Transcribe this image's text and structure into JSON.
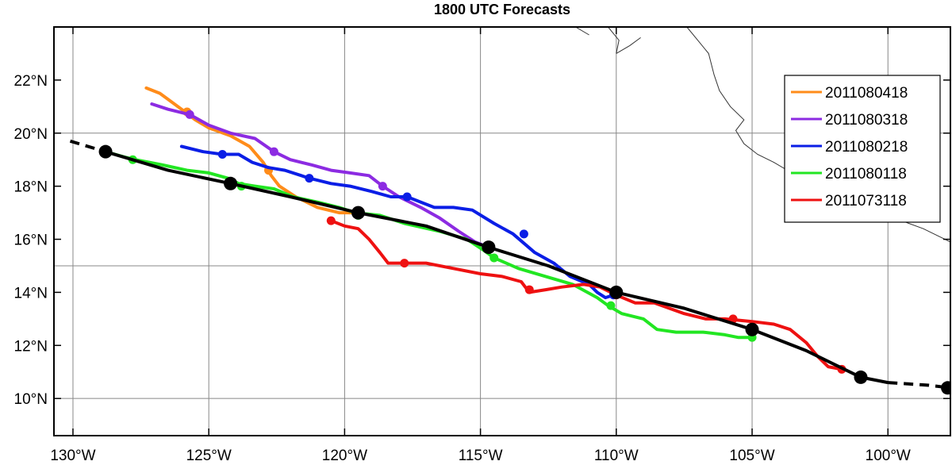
{
  "title": "1800 UTC Forecasts",
  "colors": {
    "best_track": "#000000",
    "grid": "#888888",
    "coast": "#333333"
  },
  "chart_data": {
    "type": "map-tracks",
    "xlim": [
      -130.7,
      -97.7
    ],
    "ylim": [
      8.6,
      24.0
    ],
    "x_ticks": [
      -130,
      -125,
      -120,
      -115,
      -110,
      -105,
      -100
    ],
    "x_tick_labels": [
      "130°W",
      "125°W",
      "120°W",
      "115°W",
      "110°W",
      "105°W",
      "100°W"
    ],
    "y_ticks": [
      10,
      12,
      14,
      16,
      18,
      20,
      22
    ],
    "y_tick_labels": [
      "10°N",
      "12°N",
      "14°N",
      "16°N",
      "18°N",
      "20°N",
      "22°N"
    ],
    "grid_lon": [
      -130,
      -125,
      -120,
      -115,
      -110,
      -105,
      -100
    ],
    "grid_lat": [
      10,
      15,
      20
    ],
    "legend_position": "top-right",
    "best_track": {
      "color": "#000000",
      "dashed_start": [
        [
          -130.1,
          19.7
        ],
        [
          -128.8,
          19.3
        ]
      ],
      "solid": [
        [
          -128.8,
          19.3
        ],
        [
          -126.5,
          18.6
        ],
        [
          -124.2,
          18.1
        ],
        [
          -122,
          17.6
        ],
        [
          -119.5,
          17.0
        ],
        [
          -117,
          16.5
        ],
        [
          -114.7,
          15.7
        ],
        [
          -112.5,
          15.0
        ],
        [
          -110,
          14.0
        ],
        [
          -107.5,
          13.4
        ],
        [
          -105,
          12.6
        ],
        [
          -103,
          11.8
        ],
        [
          -101,
          10.8
        ],
        [
          -100,
          10.6
        ]
      ],
      "dashed_end": [
        [
          -100,
          10.6
        ],
        [
          -98.5,
          10.5
        ],
        [
          -97.7,
          10.4
        ]
      ],
      "markers": [
        [
          -128.8,
          19.3
        ],
        [
          -124.2,
          18.1
        ],
        [
          -119.5,
          17.0
        ],
        [
          -114.7,
          15.7
        ],
        [
          -110,
          14.0
        ],
        [
          -105,
          12.6
        ],
        [
          -101,
          10.8
        ],
        [
          -97.8,
          10.4
        ]
      ]
    },
    "series": [
      {
        "name": "2011080418",
        "color": "#ff8c1a",
        "track": [
          [
            -127.3,
            21.7
          ],
          [
            -126.8,
            21.5
          ],
          [
            -126,
            20.9
          ],
          [
            -125.5,
            20.5
          ],
          [
            -125,
            20.2
          ],
          [
            -124.2,
            19.9
          ],
          [
            -123.5,
            19.5
          ],
          [
            -123,
            18.9
          ],
          [
            -122.7,
            18.4
          ],
          [
            -122.4,
            18.0
          ],
          [
            -121.8,
            17.6
          ],
          [
            -121,
            17.2
          ],
          [
            -120.2,
            17.0
          ],
          [
            -119.5,
            17.0
          ]
        ],
        "markers": [
          [
            -125.8,
            20.8
          ],
          [
            -122.8,
            18.6
          ],
          [
            -119.5,
            17.0
          ]
        ]
      },
      {
        "name": "2011080318",
        "color": "#8c2be2",
        "track": [
          [
            -127.1,
            21.1
          ],
          [
            -126.5,
            20.9
          ],
          [
            -125.7,
            20.7
          ],
          [
            -125,
            20.3
          ],
          [
            -124.2,
            20.0
          ],
          [
            -123.3,
            19.8
          ],
          [
            -122.6,
            19.3
          ],
          [
            -122,
            19.0
          ],
          [
            -121.2,
            18.8
          ],
          [
            -120.5,
            18.6
          ],
          [
            -119.8,
            18.5
          ],
          [
            -119.1,
            18.4
          ],
          [
            -118.6,
            18.0
          ],
          [
            -118,
            17.6
          ],
          [
            -117.2,
            17.2
          ],
          [
            -116.5,
            16.8
          ],
          [
            -115.8,
            16.3
          ],
          [
            -115.2,
            15.9
          ],
          [
            -114.7,
            15.7
          ]
        ],
        "markers": [
          [
            -125.7,
            20.7
          ],
          [
            -122.6,
            19.3
          ],
          [
            -118.6,
            18.0
          ],
          [
            -114.7,
            15.7
          ]
        ]
      },
      {
        "name": "2011080218",
        "color": "#0a1ee6",
        "track": [
          [
            -126,
            19.5
          ],
          [
            -125.2,
            19.3
          ],
          [
            -124.5,
            19.2
          ],
          [
            -123.9,
            19.2
          ],
          [
            -123.4,
            18.9
          ],
          [
            -122.8,
            18.7
          ],
          [
            -122.2,
            18.6
          ],
          [
            -121.3,
            18.3
          ],
          [
            -120.5,
            18.1
          ],
          [
            -119.8,
            18.0
          ],
          [
            -119,
            17.8
          ],
          [
            -118.3,
            17.6
          ],
          [
            -117.7,
            17.6
          ],
          [
            -116.7,
            17.2
          ],
          [
            -116,
            17.2
          ],
          [
            -115.3,
            17.1
          ],
          [
            -114.5,
            16.6
          ],
          [
            -113.8,
            16.2
          ],
          [
            -113,
            15.5
          ],
          [
            -112.3,
            15.1
          ],
          [
            -111.7,
            14.6
          ],
          [
            -111,
            14.3
          ],
          [
            -110.7,
            14.0
          ],
          [
            -110.4,
            13.8
          ],
          [
            -110.1,
            13.9
          ]
        ],
        "markers": [
          [
            -124.5,
            19.2
          ],
          [
            -121.3,
            18.3
          ],
          [
            -117.7,
            17.6
          ],
          [
            -113.4,
            16.2
          ],
          [
            -110.1,
            13.9
          ]
        ]
      },
      {
        "name": "2011080118",
        "color": "#22e622",
        "track": [
          [
            -128.8,
            19.3
          ],
          [
            -128.1,
            19.1
          ],
          [
            -127.7,
            19.0
          ],
          [
            -126.7,
            18.8
          ],
          [
            -125.8,
            18.6
          ],
          [
            -125,
            18.5
          ],
          [
            -124.3,
            18.3
          ],
          [
            -123.9,
            18.1
          ],
          [
            -123.3,
            18.0
          ],
          [
            -122.6,
            17.9
          ],
          [
            -121.9,
            17.6
          ],
          [
            -121,
            17.4
          ],
          [
            -120.2,
            17.2
          ],
          [
            -119.6,
            17.0
          ],
          [
            -118.7,
            16.9
          ],
          [
            -117.8,
            16.6
          ],
          [
            -116.5,
            16.3
          ],
          [
            -115.5,
            16.0
          ],
          [
            -114.9,
            15.6
          ],
          [
            -114.5,
            15.3
          ],
          [
            -113.6,
            14.9
          ],
          [
            -112.6,
            14.6
          ],
          [
            -111.6,
            14.3
          ],
          [
            -110.7,
            13.8
          ],
          [
            -110.3,
            13.5
          ],
          [
            -109.8,
            13.2
          ],
          [
            -109,
            13.0
          ],
          [
            -108.5,
            12.6
          ],
          [
            -107.8,
            12.5
          ],
          [
            -106.8,
            12.5
          ],
          [
            -106,
            12.4
          ],
          [
            -105.5,
            12.3
          ],
          [
            -105,
            12.3
          ]
        ],
        "markers": [
          [
            -127.8,
            19.0
          ],
          [
            -123.8,
            18.0
          ],
          [
            -119.5,
            16.9
          ],
          [
            -114.5,
            15.3
          ],
          [
            -110.2,
            13.5
          ],
          [
            -105,
            12.3
          ]
        ]
      },
      {
        "name": "2011073118",
        "color": "#ee1111",
        "track": [
          [
            -120.5,
            16.7
          ],
          [
            -120,
            16.5
          ],
          [
            -119.5,
            16.4
          ],
          [
            -119.1,
            16.0
          ],
          [
            -118.7,
            15.5
          ],
          [
            -118.4,
            15.1
          ],
          [
            -117.8,
            15.1
          ],
          [
            -117,
            15.1
          ],
          [
            -116,
            14.9
          ],
          [
            -115,
            14.7
          ],
          [
            -114.2,
            14.6
          ],
          [
            -113.5,
            14.4
          ],
          [
            -113.2,
            14.0
          ],
          [
            -112.6,
            14.1
          ],
          [
            -112,
            14.2
          ],
          [
            -111.2,
            14.3
          ],
          [
            -110.6,
            14.2
          ],
          [
            -110,
            13.9
          ],
          [
            -109.3,
            13.6
          ],
          [
            -108.6,
            13.6
          ],
          [
            -107.5,
            13.2
          ],
          [
            -106.7,
            13.0
          ],
          [
            -106,
            13.0
          ],
          [
            -105,
            12.9
          ],
          [
            -104.2,
            12.8
          ],
          [
            -103.6,
            12.6
          ],
          [
            -103,
            12.1
          ],
          [
            -102.6,
            11.6
          ],
          [
            -102.2,
            11.2
          ],
          [
            -101.7,
            11.1
          ]
        ],
        "markers": [
          [
            -120.5,
            16.7
          ],
          [
            -117.8,
            15.1
          ],
          [
            -113.2,
            14.1
          ],
          [
            -110,
            13.9
          ],
          [
            -105.7,
            13.0
          ],
          [
            -101.7,
            11.1
          ]
        ]
      }
    ],
    "coastlines": [
      [
        [
          -107.4,
          24.0
        ],
        [
          -107.0,
          23.5
        ],
        [
          -106.6,
          23.0
        ],
        [
          -106.4,
          22.2
        ],
        [
          -106.2,
          21.6
        ],
        [
          -105.8,
          21.0
        ],
        [
          -105.3,
          20.5
        ],
        [
          -105.6,
          20.1
        ],
        [
          -105.3,
          19.6
        ],
        [
          -104.8,
          19.2
        ],
        [
          -104.2,
          18.9
        ],
        [
          -103.7,
          18.6
        ],
        [
          -103.4,
          18.3
        ],
        [
          -102.8,
          18.0
        ],
        [
          -102.0,
          17.9
        ],
        [
          -101.4,
          17.6
        ],
        [
          -100.8,
          17.3
        ],
        [
          -100.0,
          16.9
        ],
        [
          -99.5,
          16.7
        ],
        [
          -98.7,
          16.4
        ],
        [
          -97.7,
          15.9
        ]
      ],
      [
        [
          -110.3,
          24.0
        ],
        [
          -109.9,
          23.5
        ],
        [
          -110.0,
          23.0
        ]
      ],
      [
        [
          -110.0,
          23.0
        ],
        [
          -109.5,
          23.3
        ],
        [
          -109.1,
          23.6
        ]
      ],
      [
        [
          -111.5,
          24.0
        ],
        [
          -111.0,
          23.7
        ]
      ]
    ]
  }
}
